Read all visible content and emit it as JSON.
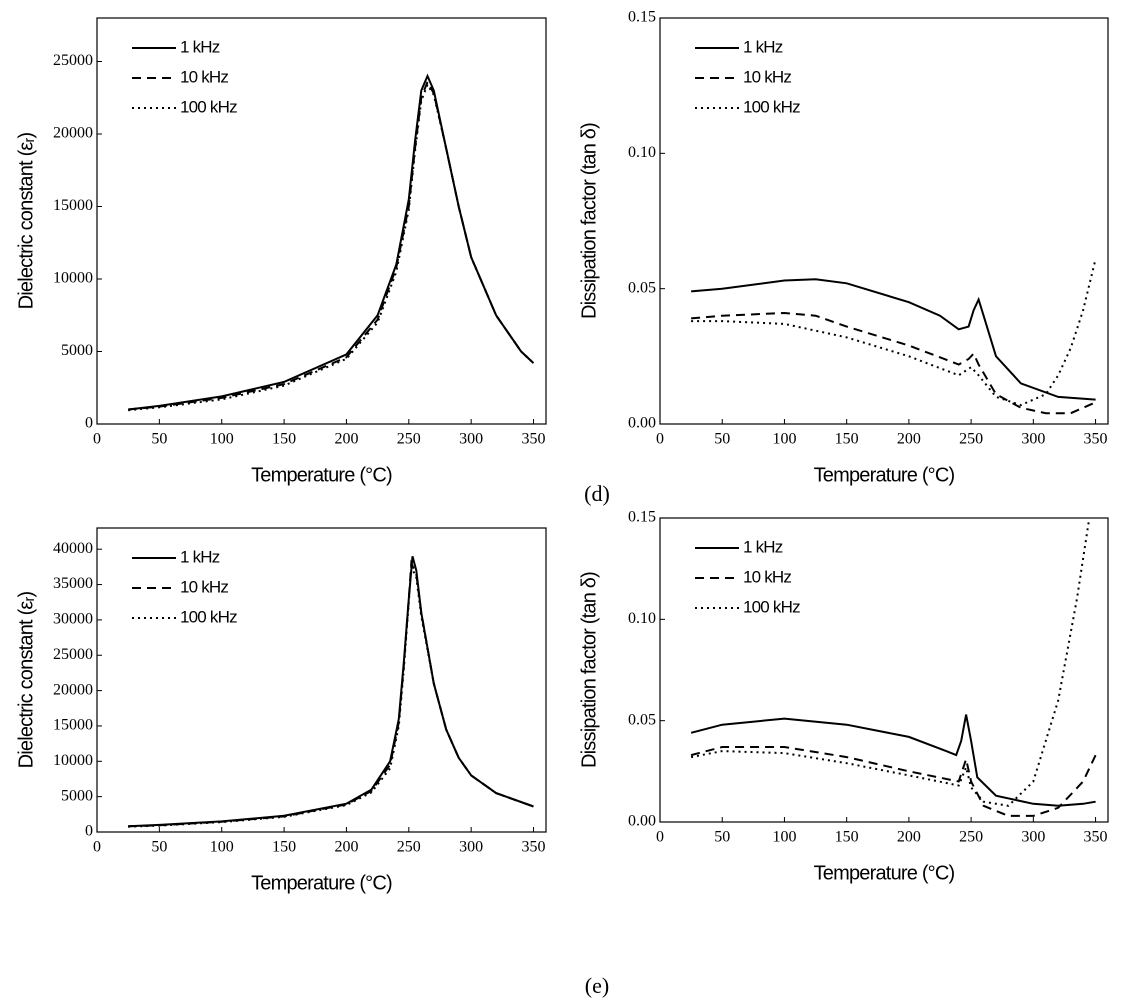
{
  "chart_data": [
    {
      "type": "line",
      "x_label": "Temperature (°C)",
      "y_label": "Dielectric constant (εᵣ)",
      "xlim": [
        0,
        360
      ],
      "xticks": [
        0,
        50,
        100,
        150,
        200,
        250,
        300,
        350
      ],
      "ylim": [
        0,
        28000
      ],
      "yticks": [
        0,
        5000,
        10000,
        15000,
        20000,
        25000
      ],
      "series": [
        {
          "name": "1 kHz",
          "color": "#000000",
          "dash": "solid",
          "x": [
            25,
            50,
            100,
            150,
            200,
            225,
            240,
            250,
            255,
            260,
            265,
            270,
            280,
            290,
            300,
            320,
            340,
            350
          ],
          "values": [
            1000,
            1250,
            1900,
            2900,
            4800,
            7500,
            11000,
            15500,
            19500,
            23000,
            24000,
            23000,
            19000,
            15000,
            11500,
            7500,
            5000,
            4200
          ]
        },
        {
          "name": "10 kHz",
          "color": "#000000",
          "dash": "dashed",
          "x": [
            25,
            50,
            100,
            150,
            200,
            225,
            240,
            250,
            255,
            260,
            265,
            270,
            280,
            290,
            300,
            320,
            340,
            350
          ],
          "values": [
            1000,
            1200,
            1800,
            2750,
            4600,
            7200,
            10800,
            15000,
            19000,
            22500,
            23600,
            22800,
            19000,
            15000,
            11500,
            7500,
            5000,
            4200
          ]
        },
        {
          "name": "100 kHz",
          "color": "#000000",
          "dash": "dotted",
          "x": [
            25,
            50,
            100,
            150,
            200,
            225,
            240,
            250,
            255,
            260,
            265,
            270,
            280,
            290,
            300,
            320,
            340,
            350
          ],
          "values": [
            950,
            1150,
            1700,
            2650,
            4500,
            7000,
            10500,
            14800,
            18800,
            22300,
            23400,
            22700,
            19000,
            15000,
            11500,
            7500,
            5000,
            4200
          ]
        }
      ]
    },
    {
      "type": "line",
      "x_label": "Temperature (°C)",
      "y_label": "Dissipation factor (tan δ)",
      "annotation": "(d)",
      "xlim": [
        0,
        360
      ],
      "xticks": [
        0,
        50,
        100,
        150,
        200,
        250,
        300,
        350
      ],
      "ylim": [
        0,
        0.15
      ],
      "yticks": [
        {
          "value": 0,
          "label": "0.00"
        },
        {
          "value": 0.05,
          "label": "0.05"
        },
        {
          "value": 0.1,
          "label": "0.10"
        },
        {
          "value": 0.15,
          "label": "0.15"
        }
      ],
      "series": [
        {
          "name": "1 kHz",
          "color": "#000000",
          "dash": "solid",
          "x": [
            25,
            50,
            100,
            125,
            150,
            200,
            225,
            240,
            248,
            252,
            256,
            260,
            270,
            290,
            320,
            350
          ],
          "values": [
            0.049,
            0.05,
            0.053,
            0.0535,
            0.052,
            0.045,
            0.04,
            0.035,
            0.036,
            0.042,
            0.046,
            0.04,
            0.025,
            0.015,
            0.01,
            0.009
          ]
        },
        {
          "name": "10 kHz",
          "color": "#000000",
          "dash": "dashed",
          "x": [
            25,
            50,
            100,
            125,
            150,
            200,
            240,
            248,
            252,
            256,
            270,
            290,
            310,
            330,
            350
          ],
          "values": [
            0.039,
            0.04,
            0.041,
            0.04,
            0.036,
            0.029,
            0.022,
            0.024,
            0.026,
            0.022,
            0.011,
            0.006,
            0.004,
            0.004,
            0.008
          ]
        },
        {
          "name": "100 kHz",
          "color": "#000000",
          "dash": "dotted",
          "x": [
            25,
            50,
            100,
            150,
            200,
            240,
            250,
            256,
            270,
            290,
            310,
            320,
            330,
            340,
            350
          ],
          "values": [
            0.038,
            0.038,
            0.037,
            0.032,
            0.025,
            0.018,
            0.021,
            0.018,
            0.01,
            0.007,
            0.011,
            0.018,
            0.028,
            0.042,
            0.061
          ]
        }
      ]
    },
    {
      "type": "line",
      "x_label": "Temperature (°C)",
      "y_label": "Dielectric constant (εᵣ)",
      "xlim": [
        0,
        360
      ],
      "xticks": [
        0,
        50,
        100,
        150,
        200,
        250,
        300,
        350
      ],
      "ylim": [
        0,
        43000
      ],
      "yticks": [
        0,
        5000,
        10000,
        15000,
        20000,
        25000,
        30000,
        35000,
        40000
      ],
      "series": [
        {
          "name": "1 kHz",
          "color": "#000000",
          "dash": "solid",
          "x": [
            25,
            50,
            100,
            150,
            200,
            220,
            235,
            242,
            246,
            250,
            253,
            256,
            260,
            270,
            280,
            290,
            300,
            320,
            350
          ],
          "values": [
            800,
            1000,
            1500,
            2300,
            4000,
            6000,
            10000,
            16000,
            24000,
            33000,
            39000,
            37000,
            31000,
            21000,
            14500,
            10500,
            8000,
            5500,
            3600
          ]
        },
        {
          "name": "10 kHz",
          "color": "#000000",
          "dash": "dashed",
          "x": [
            25,
            50,
            100,
            150,
            200,
            220,
            235,
            242,
            246,
            250,
            252,
            256,
            260,
            270,
            280,
            290,
            300,
            320,
            350
          ],
          "values": [
            800,
            950,
            1450,
            2200,
            3900,
            5800,
            9500,
            15500,
            23500,
            33000,
            38000,
            36500,
            31000,
            21000,
            14500,
            10500,
            8000,
            5500,
            3600
          ]
        },
        {
          "name": "100 kHz",
          "color": "#000000",
          "dash": "dotted",
          "x": [
            25,
            50,
            100,
            150,
            200,
            220,
            235,
            242,
            246,
            250,
            252,
            256,
            260,
            270,
            280,
            290,
            300,
            320,
            350
          ],
          "values": [
            750,
            900,
            1400,
            2150,
            3800,
            5600,
            9000,
            15000,
            23000,
            32500,
            37500,
            36000,
            30500,
            21000,
            14500,
            10500,
            8000,
            5500,
            3600
          ]
        }
      ]
    },
    {
      "type": "line",
      "x_label": "Temperature (°C)",
      "y_label": "Dissipation factor (tan δ)",
      "annotation": "(e)",
      "xlim": [
        0,
        360
      ],
      "xticks": [
        0,
        50,
        100,
        150,
        200,
        250,
        300,
        350
      ],
      "ylim": [
        0,
        0.15
      ],
      "yticks": [
        {
          "value": 0,
          "label": "0.00"
        },
        {
          "value": 0.05,
          "label": "0.05"
        },
        {
          "value": 0.1,
          "label": "0.10"
        },
        {
          "value": 0.15,
          "label": "0.15"
        }
      ],
      "series": [
        {
          "name": "1 kHz",
          "color": "#000000",
          "dash": "solid",
          "x": [
            25,
            50,
            100,
            150,
            200,
            230,
            238,
            242,
            246,
            250,
            255,
            270,
            300,
            320,
            340,
            350
          ],
          "values": [
            0.044,
            0.048,
            0.051,
            0.048,
            0.042,
            0.035,
            0.033,
            0.04,
            0.053,
            0.04,
            0.022,
            0.013,
            0.009,
            0.008,
            0.009,
            0.01
          ]
        },
        {
          "name": "10 kHz",
          "color": "#000000",
          "dash": "dashed",
          "x": [
            25,
            50,
            100,
            150,
            200,
            240,
            246,
            250,
            260,
            280,
            300,
            320,
            340,
            350
          ],
          "values": [
            0.033,
            0.037,
            0.037,
            0.032,
            0.025,
            0.02,
            0.031,
            0.02,
            0.008,
            0.003,
            0.003,
            0.007,
            0.02,
            0.033
          ]
        },
        {
          "name": "100 kHz",
          "color": "#000000",
          "dash": "dotted",
          "x": [
            25,
            50,
            100,
            150,
            200,
            240,
            246,
            250,
            260,
            280,
            300,
            320,
            335,
            345
          ],
          "values": [
            0.032,
            0.035,
            0.034,
            0.029,
            0.023,
            0.018,
            0.027,
            0.017,
            0.01,
            0.008,
            0.02,
            0.06,
            0.11,
            0.15
          ]
        }
      ]
    }
  ]
}
